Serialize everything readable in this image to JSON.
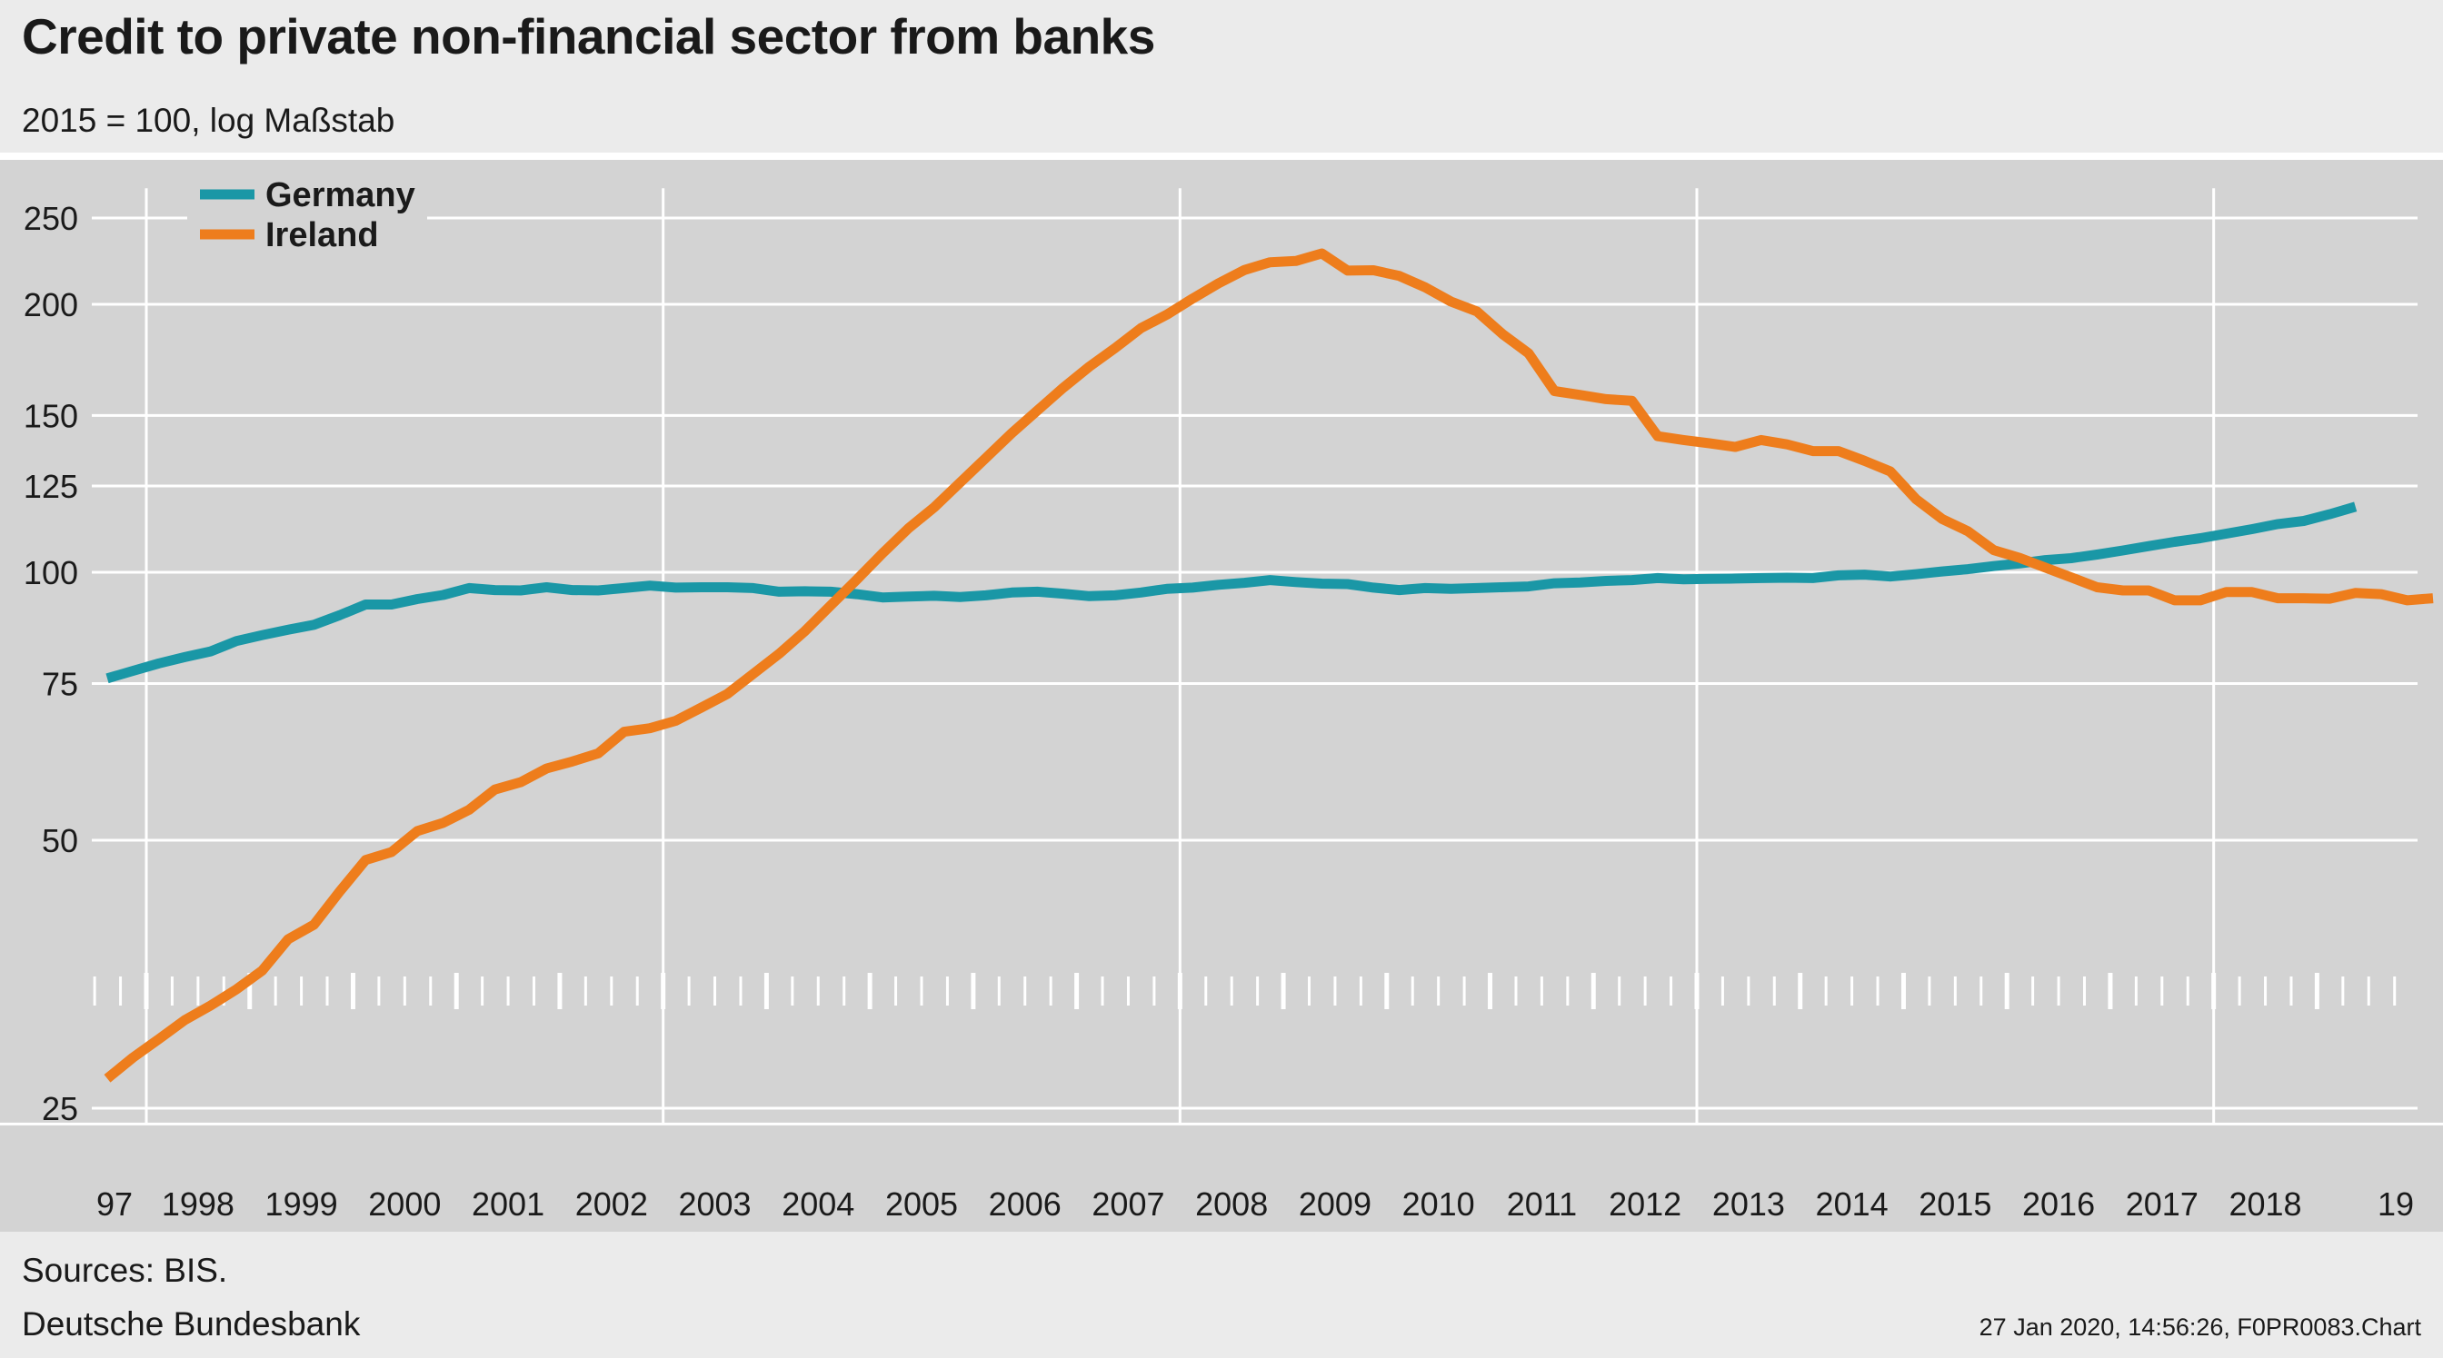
{
  "header": {
    "title": "Credit to private non-financial sector from banks",
    "subtitle": "2015 = 100, log Maßstab"
  },
  "footer": {
    "sources": "Sources: BIS.",
    "publisher": "Deutsche Bundesbank",
    "stamp": "27 Jan 2020, 14:56:26, F0PR0083.Chart"
  },
  "chart_data": {
    "type": "line",
    "title": "Credit to private non-financial sector from banks",
    "subtitle": "2015 = 100, log Maßstab",
    "y_scale": "log",
    "ylim": [
      24,
      270
    ],
    "y_ticks": [
      25,
      50,
      75,
      100,
      125,
      150,
      200,
      250
    ],
    "x_range": [
      "1997-Q1",
      "2019-Q3"
    ],
    "x_tick_labels": [
      "97",
      "1998",
      "1999",
      "2000",
      "2001",
      "2002",
      "2003",
      "2004",
      "2005",
      "2006",
      "2007",
      "2008",
      "2009",
      "2010",
      "2011",
      "2012",
      "2013",
      "2014",
      "2015",
      "2016",
      "2017",
      "2018",
      "19"
    ],
    "grid": true,
    "legend_position": "top-left",
    "frequency": "quarterly",
    "series": [
      {
        "name": "Germany",
        "color": "#1a97a6",
        "values": [
          76,
          77.5,
          79,
          80.3,
          81.5,
          83.7,
          85,
          86.2,
          87.3,
          89.5,
          92,
          92,
          93.3,
          94.3,
          96,
          95.5,
          95.4,
          96.2,
          95.5,
          95.4,
          96,
          96.6,
          96.1,
          96.2,
          96.2,
          96,
          95.1,
          95.2,
          95.1,
          94.5,
          93.7,
          93.9,
          94.1,
          93.8,
          94.2,
          94.9,
          95.1,
          94.6,
          94,
          94.2,
          94.9,
          95.8,
          96.1,
          96.8,
          97.3,
          98,
          97.5,
          97.1,
          97,
          96.1,
          95.5,
          96,
          95.8,
          96,
          96.2,
          96.4,
          97.2,
          97.4,
          97.8,
          98,
          98.5,
          98.2,
          98.3,
          98.4,
          98.5,
          98.6,
          98.5,
          99.2,
          99.4,
          98.9,
          99.5,
          100.2,
          100.8,
          101.6,
          102.3,
          103.2,
          103.7,
          104.7,
          105.8,
          107,
          108.2,
          109.2,
          110.5,
          111.8,
          113.3,
          114.2,
          116.2,
          118.5
        ]
      },
      {
        "name": "Ireland",
        "color": "#ee7d1c",
        "values": [
          27,
          28.5,
          29.9,
          31.4,
          32.6,
          34,
          35.7,
          38.7,
          40.2,
          43.8,
          47.5,
          48.5,
          51.2,
          52.3,
          54.1,
          57,
          58.1,
          60.2,
          61.3,
          62.6,
          66.2,
          66.8,
          68.1,
          70.5,
          73,
          76.9,
          81,
          85.9,
          91.8,
          98.1,
          105,
          112,
          118.3,
          126.1,
          134.4,
          143.3,
          152,
          161.2,
          170.2,
          178.6,
          188,
          194.7,
          203,
          211.1,
          218.5,
          223,
          223.7,
          228.1,
          218.2,
          218.4,
          215.2,
          209,
          201.4,
          196.3,
          185.1,
          176.2,
          159.8,
          158.2,
          156.5,
          155.8,
          142.2,
          140.8,
          139.6,
          138.3,
          140.8,
          139.2,
          136.8,
          136.8,
          133.4,
          129.8,
          120.8,
          114.8,
          111.2,
          105.9,
          103.8,
          101.2,
          98.7,
          96.2,
          95.4,
          95.4,
          93,
          93,
          95,
          95,
          93.5,
          93.5,
          93.4,
          94.8,
          94.5,
          93,
          93.5
        ]
      }
    ]
  }
}
